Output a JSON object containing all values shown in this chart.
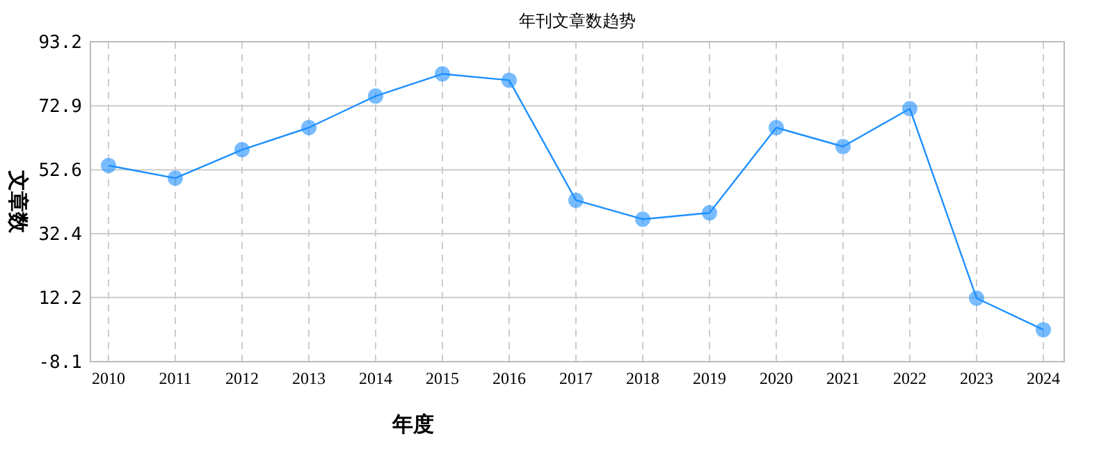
{
  "chart_data": {
    "type": "line",
    "title": "年刊文章数趋势",
    "xlabel": "年度",
    "ylabel": "文章数",
    "categories": [
      "2010",
      "2011",
      "2012",
      "2013",
      "2014",
      "2015",
      "2016",
      "2017",
      "2018",
      "2019",
      "2020",
      "2021",
      "2022",
      "2023",
      "2024"
    ],
    "series": [
      {
        "color": "#1e90ff",
        "values": [
          54,
          50,
          59,
          66,
          76,
          83,
          81,
          43,
          37,
          39,
          66,
          60,
          72,
          12,
          2
        ]
      }
    ],
    "ylim": [
      -8.1,
      93.2
    ],
    "yticks": [
      -8.1,
      12.2,
      32.4,
      52.6,
      72.9,
      93.2
    ],
    "grid": true,
    "marker": "circle",
    "line_style": "solid"
  }
}
